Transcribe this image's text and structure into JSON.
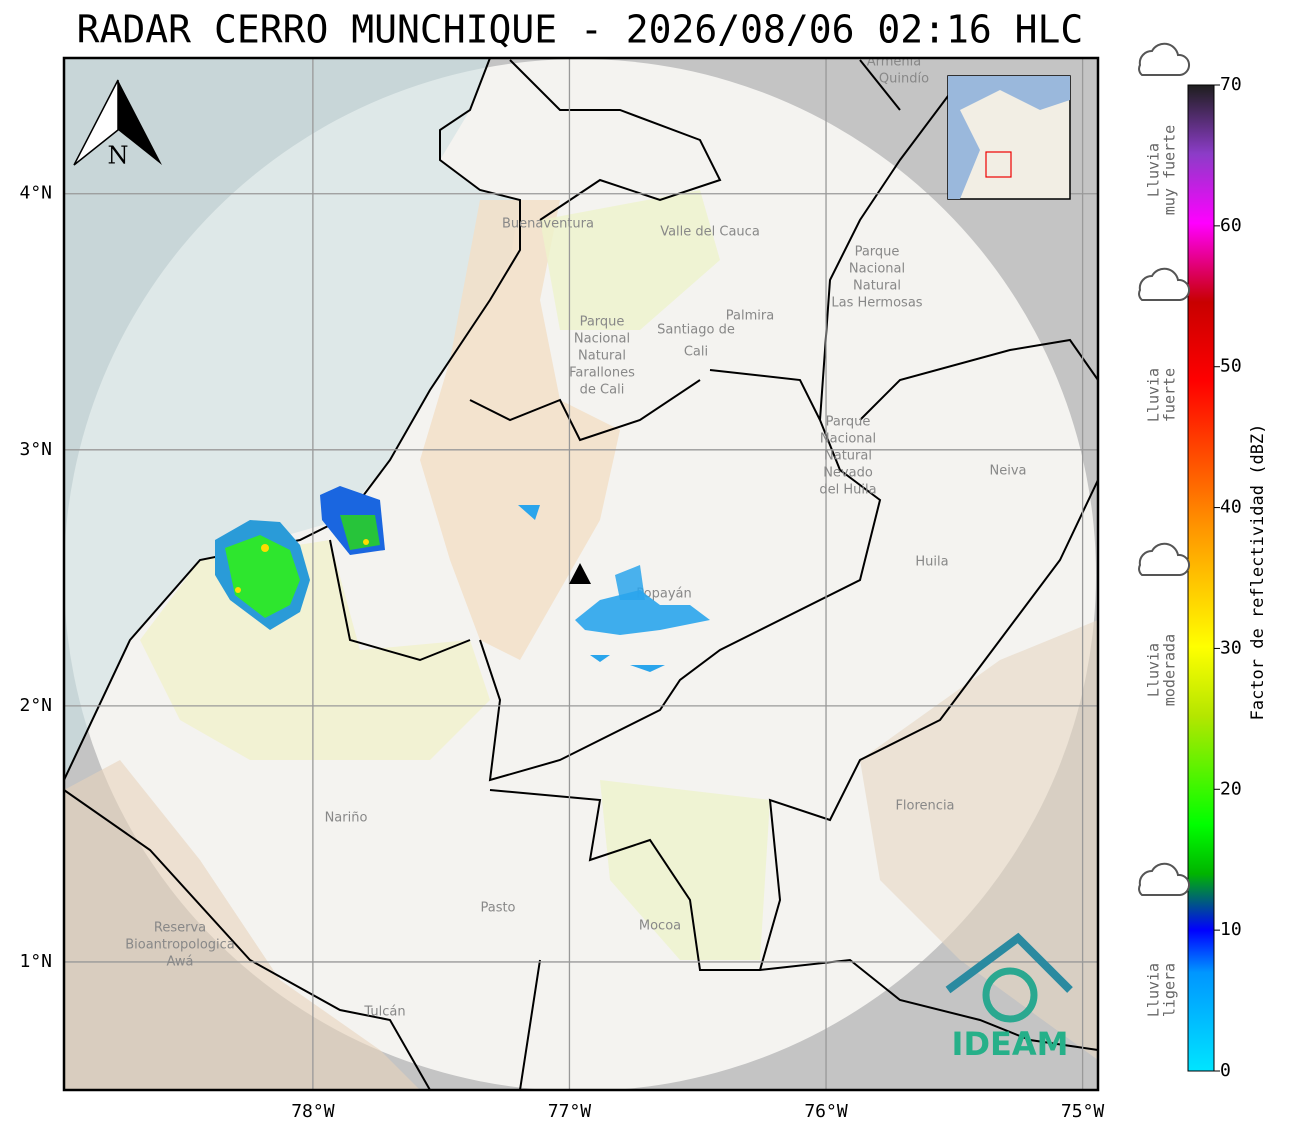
{
  "title": "RADAR CERRO MUNCHIQUE - 2026/08/06 02:16 HLC",
  "map": {
    "lonlim": [
      -78.97,
      -74.94
    ],
    "latlim": [
      0.5,
      4.53
    ],
    "xticks": [
      {
        "value": -78,
        "label": "78°W"
      },
      {
        "value": -77,
        "label": "77°W"
      },
      {
        "value": -76,
        "label": "76°W"
      },
      {
        "value": -75,
        "label": "75°W"
      }
    ],
    "yticks": [
      {
        "value": 1,
        "label": "1°N"
      },
      {
        "value": 2,
        "label": "2°N"
      },
      {
        "value": 3,
        "label": "3°N"
      },
      {
        "value": 4,
        "label": "4°N"
      }
    ],
    "grid": true,
    "north": "N",
    "places": [
      "Buenaventura",
      "Valle del Cauca",
      "Santiago de",
      "Cali",
      "Palmira",
      "Parque",
      "Nacional",
      "Natural",
      "Farallones",
      "de Cali",
      "Parque",
      "Nacional",
      "Natural",
      "Las Hermosas",
      "Parque",
      "Nacional",
      "Natural",
      "Nevado",
      "del Huila",
      "Neiva",
      "Huila",
      "Popayán",
      "Nariño",
      "Pasto",
      "Mocoa",
      "Florencia",
      "Reserva",
      "Bioantropologica",
      "Awá",
      "Tulcán",
      "Armenia",
      "Quindío"
    ],
    "logo": "IDEAM"
  },
  "colorbar": {
    "label": "Factor de reflectividad (dBZ)",
    "lim": [
      0,
      70
    ],
    "ticks": [
      0,
      10,
      20,
      30,
      40,
      50,
      60,
      70
    ]
  },
  "legend": [
    [
      "Lluvia",
      "muy fuerte"
    ],
    [
      "Lluvia",
      "fuerte"
    ],
    [
      "Lluvia",
      "moderada"
    ],
    [
      "Lluvia",
      "ligera"
    ]
  ]
}
